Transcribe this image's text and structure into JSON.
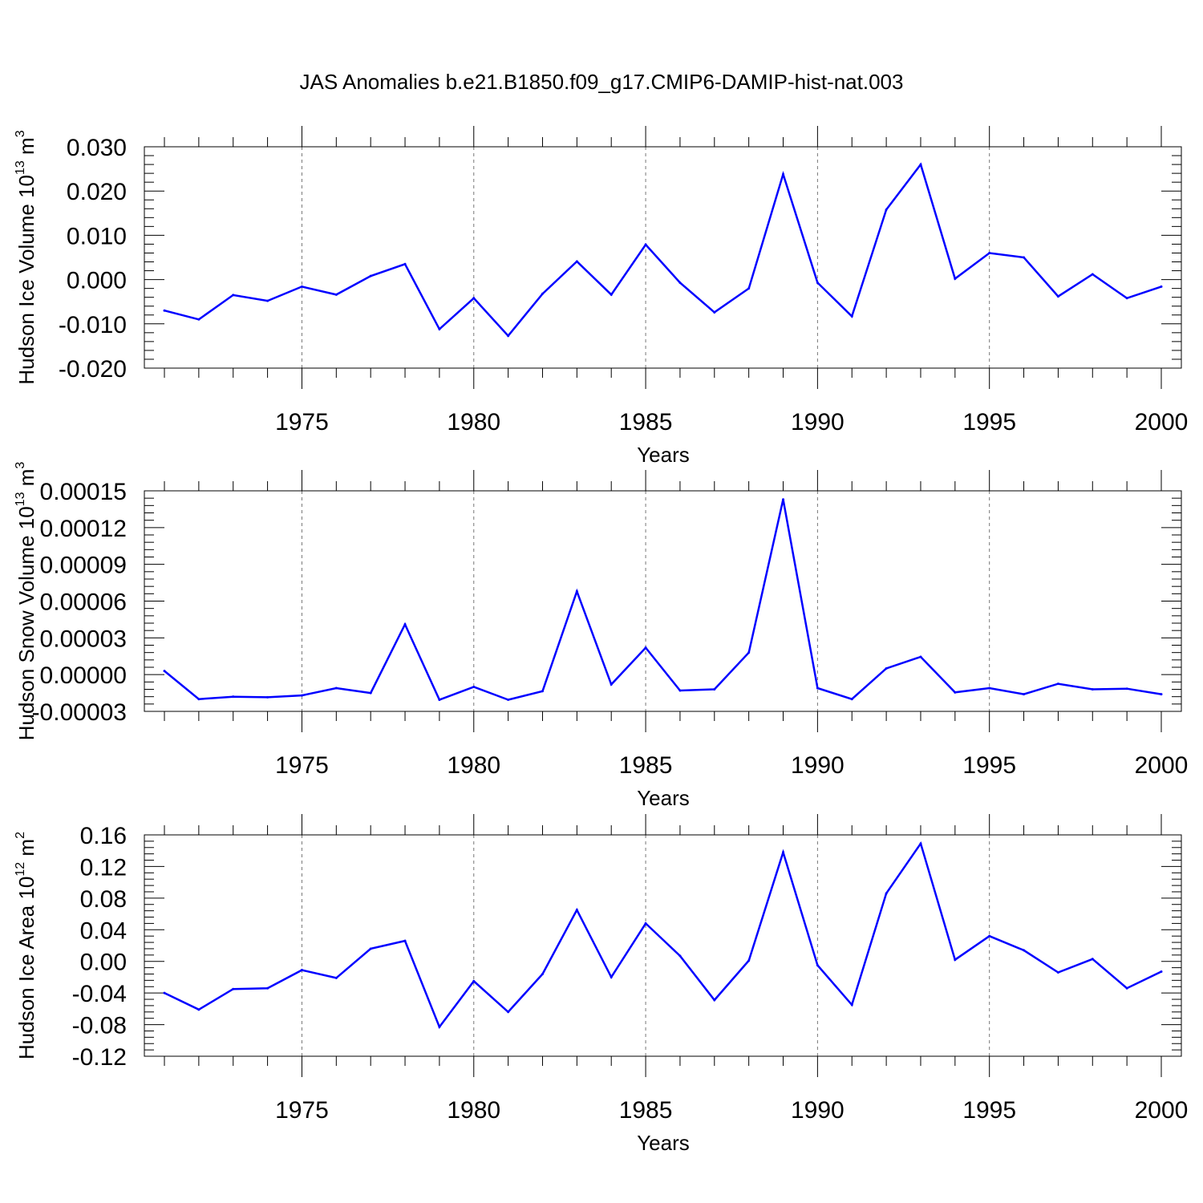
{
  "title": "JAS Anomalies b.e21.B1850.f09_g17.CMIP6-DAMIP-hist-nat.003",
  "colors": {
    "line": "#0000ff",
    "axis": "#000000",
    "grid": "#777777"
  },
  "chart_data": [
    {
      "type": "line",
      "ylabel": {
        "text": "Hudson Ice Volume 10",
        "exponent": "13",
        "unit": " m",
        "unit_exponent": "3"
      },
      "xlabel": "Years",
      "xlim": [
        1971,
        2000
      ],
      "ylim": [
        -0.02,
        0.03
      ],
      "yticks": [
        0.03,
        0.02,
        0.01,
        0.0,
        -0.01,
        -0.02
      ],
      "ytick_labels": [
        "0.030",
        "0.020",
        "0.010",
        "0.000",
        "-0.010",
        "-0.020"
      ],
      "xticks": [
        1975,
        1980,
        1985,
        1990,
        1995,
        2000
      ],
      "xtick_labels": [
        "1975",
        "1980",
        "1985",
        "1990",
        "1995",
        "2000"
      ],
      "grid": "vertical dashed at major x ticks",
      "x": [
        1971,
        1972,
        1973,
        1974,
        1975,
        1976,
        1977,
        1978,
        1979,
        1980,
        1981,
        1982,
        1983,
        1984,
        1985,
        1986,
        1987,
        1988,
        1989,
        1990,
        1991,
        1992,
        1993,
        1994,
        1995,
        1996,
        1997,
        1998,
        1999,
        2000
      ],
      "y": [
        -0.007,
        -0.009,
        -0.0035,
        -0.0048,
        -0.0016,
        -0.0034,
        0.0008,
        0.0035,
        -0.0112,
        -0.0042,
        -0.0127,
        -0.0032,
        0.0041,
        -0.0034,
        0.0079,
        -0.0007,
        -0.0074,
        -0.002,
        0.0238,
        -0.0007,
        -0.0083,
        0.0158,
        0.026,
        0.0002,
        0.006,
        0.005,
        -0.0038,
        0.0012,
        -0.0042,
        -0.0016
      ]
    },
    {
      "type": "line",
      "ylabel": {
        "text": "Hudson Snow Volume 10",
        "exponent": "13",
        "unit": " m",
        "unit_exponent": "3"
      },
      "xlabel": "Years",
      "xlim": [
        1971,
        2000
      ],
      "ylim": [
        -3e-05,
        0.00015
      ],
      "yticks": [
        0.00015,
        0.00012,
        9e-05,
        6e-05,
        3e-05,
        0.0,
        -3e-05
      ],
      "ytick_labels": [
        "0.00015",
        "0.00012",
        "0.00009",
        "0.00006",
        "0.00003",
        "0.00000",
        "-0.00003"
      ],
      "xticks": [
        1975,
        1980,
        1985,
        1990,
        1995,
        2000
      ],
      "xtick_labels": [
        "1975",
        "1980",
        "1985",
        "1990",
        "1995",
        "2000"
      ],
      "grid": "vertical dashed at major x ticks",
      "x": [
        1971,
        1972,
        1973,
        1974,
        1975,
        1976,
        1977,
        1978,
        1979,
        1980,
        1981,
        1982,
        1983,
        1984,
        1985,
        1986,
        1987,
        1988,
        1989,
        1990,
        1991,
        1992,
        1993,
        1994,
        1995,
        1996,
        1997,
        1998,
        1999,
        2000
      ],
      "y": [
        3e-06,
        -2e-05,
        -1.8e-05,
        -1.85e-05,
        -1.7e-05,
        -1.1e-05,
        -1.5e-05,
        4.1e-05,
        -2.05e-05,
        -1e-05,
        -2.05e-05,
        -1.35e-05,
        6.8e-05,
        -8e-06,
        2.2e-05,
        -1.3e-05,
        -1.2e-05,
        1.8e-05,
        0.000143,
        -1.1e-05,
        -2e-05,
        5e-06,
        1.45e-05,
        -1.45e-05,
        -1.1e-05,
        -1.6e-05,
        -7.5e-06,
        -1.2e-05,
        -1.15e-05,
        -1.6e-05
      ]
    },
    {
      "type": "line",
      "ylabel": {
        "text": "Hudson Ice Area 10",
        "exponent": "12",
        "unit": " m",
        "unit_exponent": "2"
      },
      "xlabel": "Years",
      "xlim": [
        1971,
        2000
      ],
      "ylim": [
        -0.12,
        0.16
      ],
      "yticks": [
        0.16,
        0.12,
        0.08,
        0.04,
        0.0,
        -0.04,
        -0.08,
        -0.12
      ],
      "ytick_labels": [
        "0.16",
        "0.12",
        "0.08",
        "0.04",
        "0.00",
        "-0.04",
        "-0.08",
        "-0.12"
      ],
      "xticks": [
        1975,
        1980,
        1985,
        1990,
        1995,
        2000
      ],
      "xtick_labels": [
        "1975",
        "1980",
        "1985",
        "1990",
        "1995",
        "2000"
      ],
      "grid": "vertical dashed at major x ticks",
      "x": [
        1971,
        1972,
        1973,
        1974,
        1975,
        1976,
        1977,
        1978,
        1979,
        1980,
        1981,
        1982,
        1983,
        1984,
        1985,
        1986,
        1987,
        1988,
        1989,
        1990,
        1991,
        1992,
        1993,
        1994,
        1995,
        1996,
        1997,
        1998,
        1999,
        2000
      ],
      "y": [
        -0.04,
        -0.061,
        -0.035,
        -0.034,
        -0.011,
        -0.021,
        0.016,
        0.026,
        -0.083,
        -0.025,
        -0.064,
        -0.016,
        0.065,
        -0.02,
        0.048,
        0.007,
        -0.049,
        0.001,
        0.138,
        -0.005,
        -0.055,
        0.086,
        0.149,
        0.002,
        0.032,
        0.014,
        -0.014,
        0.003,
        -0.034,
        -0.013
      ]
    }
  ]
}
